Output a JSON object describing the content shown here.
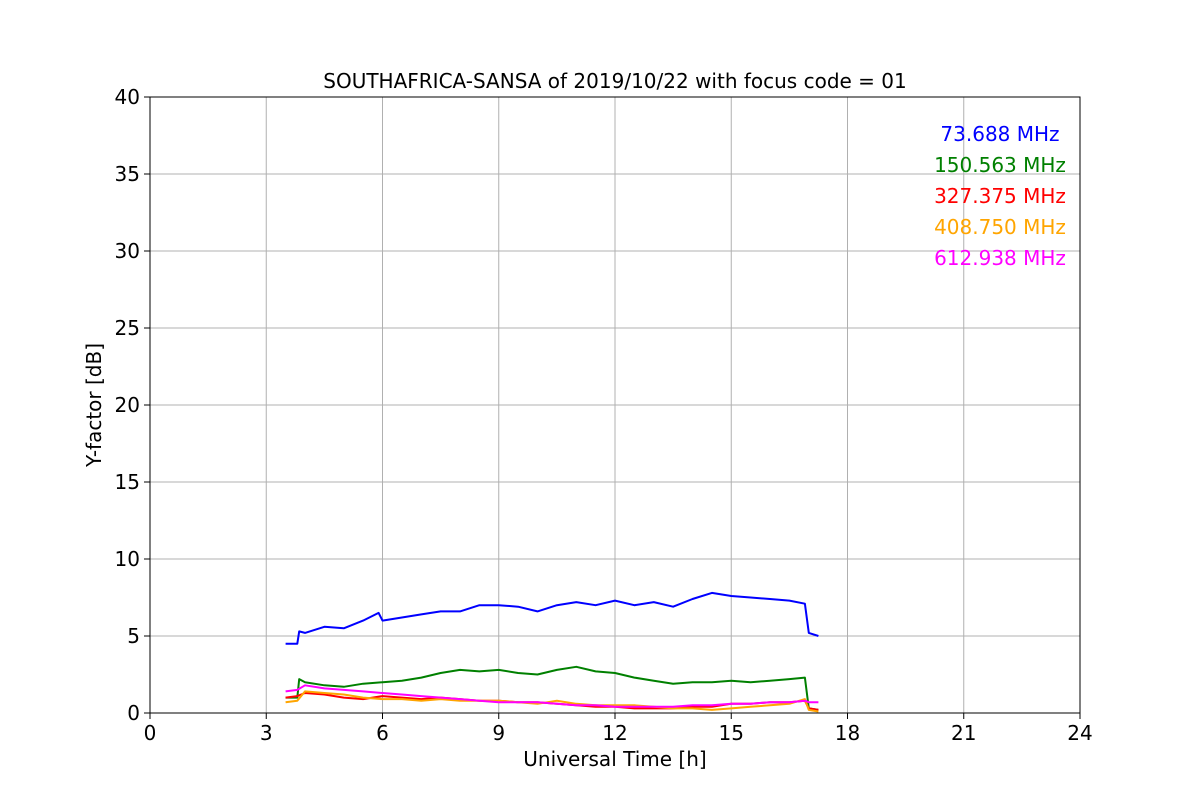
{
  "chart_data": {
    "type": "line",
    "title": "SOUTHAFRICA-SANSA of 2019/10/22 with focus code = 01",
    "xlabel": "Universal Time [h]",
    "ylabel": "Y-factor [dB]",
    "xlim": [
      0,
      24
    ],
    "ylim": [
      0,
      40
    ],
    "xticks": [
      0,
      3,
      6,
      9,
      12,
      15,
      18,
      21,
      24
    ],
    "yticks": [
      0,
      5,
      10,
      15,
      20,
      25,
      30,
      35,
      40
    ],
    "xtick_labels": [
      "0",
      "3",
      "6",
      "9",
      "12",
      "15",
      "18",
      "21",
      "24"
    ],
    "ytick_labels": [
      "0",
      "5",
      "10",
      "15",
      "20",
      "25",
      "30",
      "35",
      "40"
    ],
    "grid": true,
    "legend_position": "top-right",
    "series": [
      {
        "name": "73.688 MHz",
        "color": "#0000ff",
        "x": [
          3.5,
          3.8,
          3.85,
          4.0,
          4.5,
          5.0,
          5.5,
          5.9,
          6.0,
          6.5,
          7.0,
          7.5,
          8.0,
          8.5,
          9.0,
          9.5,
          10.0,
          10.5,
          11.0,
          11.5,
          12.0,
          12.5,
          13.0,
          13.5,
          14.0,
          14.5,
          15.0,
          15.5,
          16.0,
          16.5,
          16.9,
          17.0,
          17.25
        ],
        "y": [
          4.5,
          4.5,
          5.3,
          5.2,
          5.6,
          5.5,
          6.0,
          6.5,
          6.0,
          6.2,
          6.4,
          6.6,
          6.6,
          7.0,
          7.0,
          6.9,
          6.6,
          7.0,
          7.2,
          7.0,
          7.3,
          7.0,
          7.2,
          6.9,
          7.4,
          7.8,
          7.6,
          7.5,
          7.4,
          7.3,
          7.1,
          5.2,
          5.0
        ]
      },
      {
        "name": "150.563 MHz",
        "color": "#008000",
        "x": [
          3.5,
          3.8,
          3.85,
          4.0,
          4.5,
          5.0,
          5.5,
          6.0,
          6.5,
          7.0,
          7.5,
          8.0,
          8.5,
          9.0,
          9.5,
          10.0,
          10.5,
          11.0,
          11.5,
          12.0,
          12.5,
          13.0,
          13.5,
          14.0,
          14.5,
          15.0,
          15.5,
          16.0,
          16.5,
          16.9,
          17.0,
          17.25
        ],
        "y": [
          1.0,
          1.0,
          2.2,
          2.0,
          1.8,
          1.7,
          1.9,
          2.0,
          2.1,
          2.3,
          2.6,
          2.8,
          2.7,
          2.8,
          2.6,
          2.5,
          2.8,
          3.0,
          2.7,
          2.6,
          2.3,
          2.1,
          1.9,
          2.0,
          2.0,
          2.1,
          2.0,
          2.1,
          2.2,
          2.3,
          0.3,
          0.2
        ]
      },
      {
        "name": "327.375 MHz",
        "color": "#ff0000",
        "x": [
          3.5,
          3.8,
          4.0,
          4.5,
          5.0,
          5.5,
          6.0,
          6.5,
          7.0,
          7.5,
          8.0,
          8.5,
          9.0,
          9.5,
          10.0,
          10.5,
          11.0,
          11.5,
          12.0,
          12.5,
          13.0,
          13.5,
          14.0,
          14.5,
          15.0,
          15.5,
          16.0,
          16.5,
          16.9,
          17.0,
          17.25
        ],
        "y": [
          1.0,
          1.1,
          1.3,
          1.2,
          1.0,
          0.9,
          1.1,
          1.0,
          0.9,
          1.0,
          0.9,
          0.8,
          0.8,
          0.7,
          0.7,
          0.6,
          0.5,
          0.4,
          0.4,
          0.3,
          0.3,
          0.3,
          0.4,
          0.4,
          0.6,
          0.6,
          0.7,
          0.7,
          0.8,
          0.3,
          0.2
        ]
      },
      {
        "name": "408.750 MHz",
        "color": "#ffa500",
        "x": [
          3.5,
          3.8,
          4.0,
          4.5,
          5.0,
          5.5,
          6.0,
          6.5,
          7.0,
          7.5,
          8.0,
          8.5,
          9.0,
          9.5,
          10.0,
          10.5,
          11.0,
          11.5,
          12.0,
          12.5,
          13.0,
          13.5,
          14.0,
          14.5,
          15.0,
          15.5,
          16.0,
          16.5,
          16.9,
          17.0,
          17.25
        ],
        "y": [
          0.7,
          0.8,
          1.4,
          1.3,
          1.2,
          1.0,
          0.9,
          0.9,
          0.8,
          0.9,
          0.8,
          0.8,
          0.8,
          0.7,
          0.6,
          0.8,
          0.6,
          0.5,
          0.5,
          0.5,
          0.4,
          0.3,
          0.3,
          0.2,
          0.3,
          0.4,
          0.5,
          0.6,
          0.9,
          0.2,
          0.1
        ]
      },
      {
        "name": "612.938 MHz",
        "color": "#ff00ff",
        "x": [
          3.5,
          3.8,
          4.0,
          4.5,
          5.0,
          5.5,
          6.0,
          6.5,
          7.0,
          7.5,
          8.0,
          8.5,
          9.0,
          9.5,
          10.0,
          10.5,
          11.0,
          11.5,
          12.0,
          12.5,
          13.0,
          13.5,
          14.0,
          14.5,
          15.0,
          15.5,
          16.0,
          16.5,
          16.9,
          17.0,
          17.25
        ],
        "y": [
          1.4,
          1.5,
          1.8,
          1.6,
          1.5,
          1.4,
          1.3,
          1.2,
          1.1,
          1.0,
          0.9,
          0.8,
          0.7,
          0.7,
          0.7,
          0.6,
          0.5,
          0.5,
          0.4,
          0.4,
          0.4,
          0.4,
          0.5,
          0.5,
          0.6,
          0.6,
          0.7,
          0.7,
          0.8,
          0.7,
          0.7
        ]
      }
    ]
  }
}
